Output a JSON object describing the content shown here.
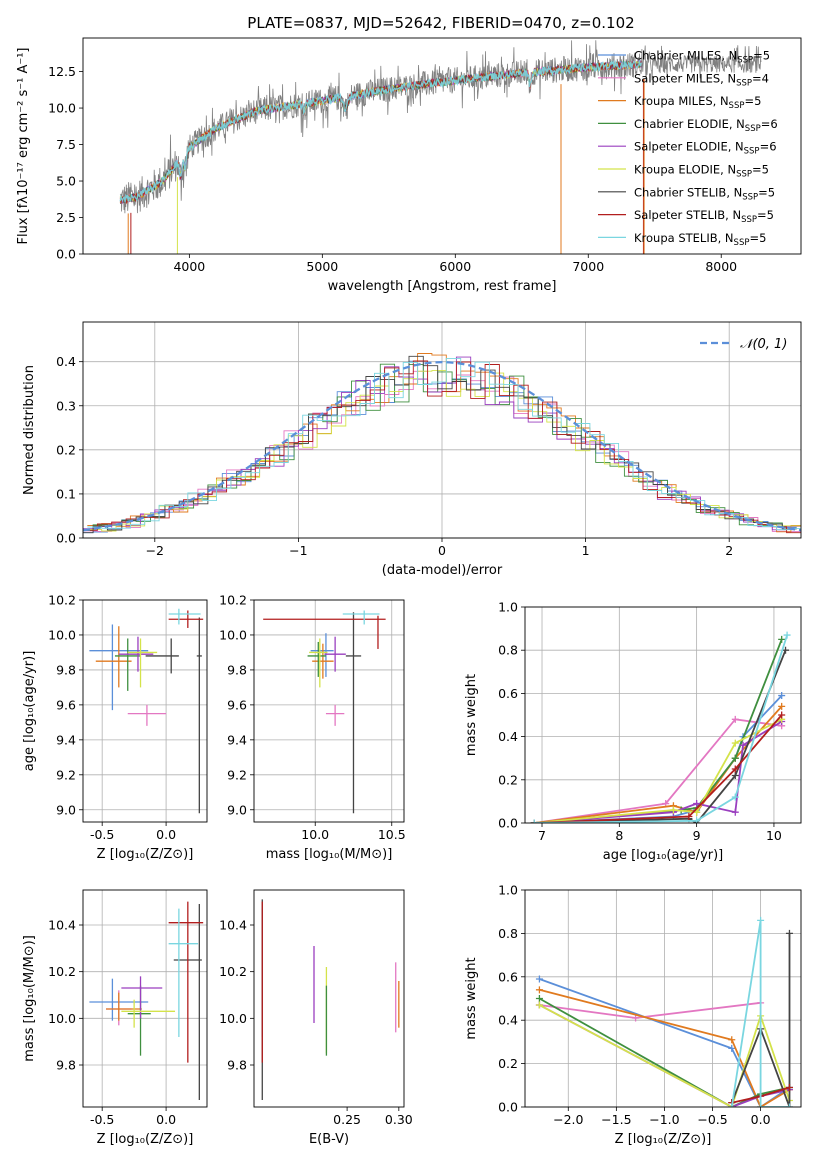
{
  "figure": {
    "title": "PLATE=0837, MJD=52642, FIBERID=0470, z=0.102"
  },
  "chart_data": [
    {
      "id": "spectrum",
      "type": "line",
      "xlabel": "wavelength [Angstrom, rest frame]",
      "ylabel": "Flux [fλ10⁻¹⁷ erg cm⁻² s⁻¹ A⁻¹]",
      "xlim": [
        3200,
        8600
      ],
      "ylim": [
        0,
        14.8
      ],
      "xticks": [
        4000,
        5000,
        6000,
        7000,
        8000
      ],
      "yticks": [
        0.0,
        2.5,
        5.0,
        7.5,
        10.0,
        12.5
      ],
      "grid": false,
      "legend_position": "top-right",
      "data_trend": {
        "x": [
          3500,
          3600,
          3800,
          4000,
          4200,
          4500,
          5000,
          5500,
          6000,
          6500,
          7000,
          7400
        ],
        "y": [
          3.7,
          3.9,
          5.0,
          7.3,
          8.6,
          9.8,
          10.5,
          11.3,
          11.9,
          12.4,
          12.8,
          13.0
        ]
      },
      "data_extent": [
        3480,
        8300
      ],
      "model_extent": [
        3480,
        7400
      ],
      "series": [
        {
          "name": "Chabrier MILES, N_SSP=5",
          "color": "#5b8fd9"
        },
        {
          "name": "Salpeter MILES, N_SSP=4",
          "color": "#e377c2"
        },
        {
          "name": "Kroupa MILES, N_SSP=5",
          "color": "#e07a1f"
        },
        {
          "name": "Chabrier ELODIE, N_SSP=6",
          "color": "#3f8f3f"
        },
        {
          "name": "Salpeter ELODIE, N_SSP=6",
          "color": "#9a3fbf"
        },
        {
          "name": "Kroupa ELODIE, N_SSP=5",
          "color": "#d4e34a"
        },
        {
          "name": "Chabrier STELIB, N_SSP=5",
          "color": "#444444"
        },
        {
          "name": "Salpeter STELIB, N_SSP=5",
          "color": "#b21e1e"
        },
        {
          "name": "Kroupa STELIB, N_SSP=5",
          "color": "#7ad6e0"
        }
      ]
    },
    {
      "id": "residuals",
      "type": "line",
      "xlabel": "(data-model)/error",
      "ylabel": "Normed distribution",
      "xlim": [
        -2.5,
        2.5
      ],
      "ylim": [
        0,
        0.49
      ],
      "xticks": [
        -2,
        -1,
        0,
        1,
        2
      ],
      "yticks": [
        0.0,
        0.1,
        0.2,
        0.3,
        0.4
      ],
      "grid": true,
      "legend_position": "top-right",
      "legend": "𝒩(0, 1)",
      "gaussian": {
        "mu": 0,
        "sigma": 1,
        "color": "#5b8fd9"
      },
      "histogram_bins": 50
    },
    {
      "id": "age-vs-Z",
      "type": "scatter",
      "xlabel": "Z [log₁₀(Z/Z⊙)]",
      "ylabel": "age  [log₁₀(age/yr)]",
      "xlim": [
        -0.65,
        0.32
      ],
      "ylim": [
        8.93,
        10.2
      ],
      "xticks": [
        -0.5,
        0.0
      ],
      "yticks": [
        9.0,
        9.2,
        9.4,
        9.6,
        9.8,
        10.0,
        10.2
      ],
      "grid": true,
      "points": [
        {
          "x": -0.42,
          "y": 9.91,
          "xerr": [
            0.18,
            0.28
          ],
          "yerr": [
            0.34,
            0.15
          ],
          "color": "#5b8fd9"
        },
        {
          "x": -0.15,
          "y": 9.55,
          "xerr": [
            0.15,
            0.15
          ],
          "yerr": [
            0.07,
            0.05
          ],
          "color": "#e377c2"
        },
        {
          "x": -0.37,
          "y": 9.85,
          "xerr": [
            0.18,
            0.1
          ],
          "yerr": [
            0.15,
            0.2
          ],
          "color": "#e07a1f"
        },
        {
          "x": -0.3,
          "y": 9.88,
          "xerr": [
            0.1,
            0.1
          ],
          "yerr": [
            0.2,
            0.1
          ],
          "color": "#3f8f3f"
        },
        {
          "x": -0.22,
          "y": 9.89,
          "xerr": [
            0.15,
            0.12
          ],
          "yerr": [
            0.1,
            0.1
          ],
          "color": "#9a3fbf"
        },
        {
          "x": -0.2,
          "y": 9.9,
          "xerr": [
            0.1,
            0.13
          ],
          "yerr": [
            0.2,
            0.08
          ],
          "color": "#d4e34a"
        },
        {
          "x": 0.04,
          "y": 9.88,
          "xerr": [
            0.2,
            0.06
          ],
          "yerr": [
            0.1,
            0.1
          ],
          "color": "#444444"
        },
        {
          "x": 0.26,
          "y": 9.88,
          "xerr": [
            0.02,
            0.02
          ],
          "yerr": [
            0.9,
            0.22
          ],
          "color": "#444444"
        },
        {
          "x": 0.17,
          "y": 10.09,
          "xerr": [
            0.15,
            0.12
          ],
          "yerr": [
            0.05,
            0.05
          ],
          "color": "#b21e1e"
        },
        {
          "x": 0.1,
          "y": 10.12,
          "xerr": [
            0.08,
            0.17
          ],
          "yerr": [
            0.06,
            0.03
          ],
          "color": "#7ad6e0"
        }
      ]
    },
    {
      "id": "age-vs-mass",
      "type": "scatter",
      "xlabel": "mass [log₁₀(M/M⊙)]",
      "ylabel": "",
      "xlim": [
        9.6,
        10.58
      ],
      "ylim": [
        8.93,
        10.2
      ],
      "xticks": [
        10.0,
        10.5
      ],
      "yticks": [
        9.0,
        9.2,
        9.4,
        9.6,
        9.8,
        10.0,
        10.2
      ],
      "grid": true,
      "points": [
        {
          "x": 10.07,
          "y": 9.91,
          "xerr": [
            0.1,
            0.05
          ],
          "yerr": [
            0.15,
            0.1
          ],
          "color": "#5b8fd9"
        },
        {
          "x": 10.13,
          "y": 9.55,
          "xerr": [
            0.06,
            0.06
          ],
          "yerr": [
            0.07,
            0.05
          ],
          "color": "#e377c2"
        },
        {
          "x": 10.05,
          "y": 9.85,
          "xerr": [
            0.07,
            0.07
          ],
          "yerr": [
            0.1,
            0.1
          ],
          "color": "#e07a1f"
        },
        {
          "x": 10.02,
          "y": 9.88,
          "xerr": [
            0.07,
            0.05
          ],
          "yerr": [
            0.12,
            0.08
          ],
          "color": "#3f8f3f"
        },
        {
          "x": 10.13,
          "y": 9.89,
          "xerr": [
            0.07,
            0.07
          ],
          "yerr": [
            0.1,
            0.1
          ],
          "color": "#9a3fbf"
        },
        {
          "x": 10.03,
          "y": 9.9,
          "xerr": [
            0.07,
            0.05
          ],
          "yerr": [
            0.2,
            0.08
          ],
          "color": "#d4e34a"
        },
        {
          "x": 10.25,
          "y": 9.88,
          "xerr": [
            0.05,
            0.05
          ],
          "yerr": [
            0.9,
            0.25
          ],
          "color": "#444444"
        },
        {
          "x": 10.41,
          "y": 10.09,
          "xerr": [
            0.75,
            0.05
          ],
          "yerr": [
            0.17,
            0.02
          ],
          "color": "#b21e1e"
        },
        {
          "x": 10.32,
          "y": 10.12,
          "xerr": [
            0.14,
            0.1
          ],
          "yerr": [
            0.06,
            0.02
          ],
          "color": "#7ad6e0"
        }
      ]
    },
    {
      "id": "massweight-vs-age",
      "type": "line",
      "xlabel": "age  [log₁₀(age/yr)]",
      "ylabel": "mass weight",
      "xlim": [
        6.78,
        10.35
      ],
      "ylim": [
        0,
        1.0
      ],
      "xticks": [
        7,
        8,
        9,
        10
      ],
      "yticks": [
        0.0,
        0.2,
        0.4,
        0.6,
        0.8,
        1.0
      ],
      "grid": true,
      "series": [
        {
          "color": "#5b8fd9",
          "x": [
            6.9,
            8.7,
            9.0,
            9.5,
            9.6,
            10.1
          ],
          "y": [
            0.0,
            0.03,
            0.06,
            0.3,
            0.4,
            0.59
          ]
        },
        {
          "color": "#e377c2",
          "x": [
            6.9,
            8.6,
            9.5,
            10.1
          ],
          "y": [
            0.0,
            0.09,
            0.48,
            0.45
          ]
        },
        {
          "color": "#e07a1f",
          "x": [
            6.9,
            8.7,
            9.0,
            9.5,
            10.1
          ],
          "y": [
            0.0,
            0.08,
            0.05,
            0.3,
            0.54
          ]
        },
        {
          "color": "#3f8f3f",
          "x": [
            6.9,
            8.8,
            9.0,
            9.5,
            10.1
          ],
          "y": [
            0.0,
            0.06,
            0.07,
            0.3,
            0.85
          ]
        },
        {
          "color": "#9a3fbf",
          "x": [
            6.9,
            8.7,
            9.0,
            9.5,
            9.6,
            10.1
          ],
          "y": [
            0.0,
            0.05,
            0.09,
            0.05,
            0.36,
            0.47
          ]
        },
        {
          "color": "#d4e34a",
          "x": [
            6.9,
            8.7,
            9.0,
            9.5,
            10.1
          ],
          "y": [
            0.0,
            0.06,
            0.05,
            0.37,
            0.48
          ]
        },
        {
          "color": "#444444",
          "x": [
            6.9,
            8.9,
            9.0,
            9.5,
            10.15
          ],
          "y": [
            0.0,
            0.02,
            0.0,
            0.22,
            0.8
          ]
        },
        {
          "color": "#b21e1e",
          "x": [
            6.9,
            8.9,
            9.5,
            10.1
          ],
          "y": [
            0.0,
            0.03,
            0.25,
            0.5
          ]
        },
        {
          "color": "#7ad6e0",
          "x": [
            6.9,
            9.0,
            9.5,
            10.17
          ],
          "y": [
            0.0,
            0.01,
            0.12,
            0.87
          ]
        }
      ]
    },
    {
      "id": "mass-vs-Z",
      "type": "scatter",
      "xlabel": "Z [log₁₀(Z/Z⊙)]",
      "ylabel": "mass [log₁₀(M/M⊙)]",
      "xlim": [
        -0.65,
        0.32
      ],
      "ylim": [
        9.62,
        10.55
      ],
      "xticks": [
        -0.5,
        0.0
      ],
      "yticks": [
        9.8,
        10.0,
        10.2,
        10.4
      ],
      "grid": true,
      "points": [
        {
          "x": -0.42,
          "y": 10.07,
          "xerr": [
            0.18,
            0.28
          ],
          "yerr": [
            0.08,
            0.1
          ],
          "color": "#5b8fd9"
        },
        {
          "x": -0.37,
          "y": 10.04,
          "xerr": [
            0.1,
            0.1
          ],
          "yerr": [
            0.07,
            0.08
          ],
          "color": "#e377c2"
        },
        {
          "x": -0.37,
          "y": 10.04,
          "xerr": [
            0.1,
            0.18
          ],
          "yerr": [
            0.05,
            0.07
          ],
          "color": "#e07a1f"
        },
        {
          "x": -0.2,
          "y": 10.02,
          "xerr": [
            0.1,
            0.08
          ],
          "yerr": [
            0.18,
            0.12
          ],
          "color": "#3f8f3f"
        },
        {
          "x": -0.2,
          "y": 10.13,
          "xerr": [
            0.15,
            0.17
          ],
          "yerr": [
            0.13,
            0.05
          ],
          "color": "#9a3fbf"
        },
        {
          "x": -0.25,
          "y": 10.03,
          "xerr": [
            0.1,
            0.32
          ],
          "yerr": [
            0.07,
            0.05
          ],
          "color": "#d4e34a"
        },
        {
          "x": 0.26,
          "y": 10.25,
          "xerr": [
            0.2,
            0.02
          ],
          "yerr": [
            0.6,
            0.24
          ],
          "color": "#444444"
        },
        {
          "x": 0.17,
          "y": 10.41,
          "xerr": [
            0.15,
            0.12
          ],
          "yerr": [
            0.6,
            0.09
          ],
          "color": "#b21e1e"
        },
        {
          "x": 0.1,
          "y": 10.32,
          "xerr": [
            0.08,
            0.15
          ],
          "yerr": [
            0.4,
            0.15
          ],
          "color": "#7ad6e0"
        }
      ]
    },
    {
      "id": "mass-vs-ebv",
      "type": "scatter",
      "xlabel": "E(B-V)",
      "ylabel": "",
      "xlim": [
        0.16,
        0.305
      ],
      "ylim": [
        9.62,
        10.55
      ],
      "xticks": [
        0.25,
        0.3
      ],
      "yticks": [
        9.8,
        10.0,
        10.2,
        10.4
      ],
      "grid": false,
      "points": [
        {
          "x": 0.168,
          "y": 10.07,
          "yerr": [
            0.15,
            0.4
          ],
          "color": "#5b8fd9"
        },
        {
          "x": 0.168,
          "y": 10.35,
          "yerr": [
            0.25,
            0.12
          ],
          "color": "#7ad6e0"
        },
        {
          "x": 0.168,
          "y": 10.25,
          "yerr": [
            0.6,
            0.26
          ],
          "color": "#444444"
        },
        {
          "x": 0.168,
          "y": 10.41,
          "yerr": [
            0.6,
            0.09
          ],
          "color": "#b21e1e"
        },
        {
          "x": 0.218,
          "y": 10.13,
          "yerr": [
            0.15,
            0.18
          ],
          "color": "#9a3fbf"
        },
        {
          "x": 0.23,
          "y": 10.03,
          "yerr": [
            0.18,
            0.19
          ],
          "color": "#d4e34a"
        },
        {
          "x": 0.23,
          "y": 10.02,
          "yerr": [
            0.18,
            0.12
          ],
          "color": "#3f8f3f"
        },
        {
          "x": 0.297,
          "y": 10.04,
          "yerr": [
            0.1,
            0.2
          ],
          "color": "#e377c2"
        },
        {
          "x": 0.3,
          "y": 10.04,
          "yerr": [
            0.08,
            0.12
          ],
          "color": "#e07a1f"
        }
      ]
    },
    {
      "id": "massweight-vs-Z",
      "type": "line",
      "xlabel": "Z [log₁₀(Z/Z⊙)]",
      "ylabel": "mass weight",
      "xlim": [
        -2.45,
        0.42
      ],
      "ylim": [
        0,
        1.0
      ],
      "xticks": [
        -2.0,
        -1.5,
        -1.0,
        -0.5,
        0.0
      ],
      "yticks": [
        0.0,
        0.2,
        0.4,
        0.6,
        0.8,
        1.0
      ],
      "grid": true,
      "series": [
        {
          "color": "#5b8fd9",
          "x": [
            -2.3,
            -0.3,
            0.0,
            0.3
          ],
          "y": [
            0.59,
            0.27,
            0.0,
            0.09
          ]
        },
        {
          "color": "#e377c2",
          "x": [
            -2.3,
            -1.3,
            0.0
          ],
          "y": [
            0.47,
            0.41,
            0.48
          ]
        },
        {
          "color": "#e07a1f",
          "x": [
            -2.3,
            -0.3,
            0.0,
            0.3
          ],
          "y": [
            0.54,
            0.31,
            0.0,
            0.08
          ]
        },
        {
          "color": "#3f8f3f",
          "x": [
            -2.3,
            -0.3,
            0.0,
            0.3
          ],
          "y": [
            0.5,
            0.0,
            0.06,
            0.09
          ]
        },
        {
          "color": "#9a3fbf",
          "x": [
            -2.3,
            -0.3,
            0.0,
            0.3
          ],
          "y": [
            0.47,
            0.0,
            0.05,
            0.08
          ]
        },
        {
          "color": "#d4e34a",
          "x": [
            -2.3,
            -0.3,
            0.0,
            0.3
          ],
          "y": [
            0.47,
            0.0,
            0.42,
            0.03
          ]
        },
        {
          "color": "#444444",
          "x": [
            -0.3,
            0.0,
            0.3,
            0.3
          ],
          "y": [
            0.02,
            0.36,
            0.0,
            0.8
          ]
        },
        {
          "color": "#b21e1e",
          "x": [
            -0.3,
            0.0,
            0.3
          ],
          "y": [
            0.02,
            0.05,
            0.09
          ]
        },
        {
          "color": "#7ad6e0",
          "x": [
            -0.3,
            0.0,
            0.0,
            0.3
          ],
          "y": [
            0.0,
            0.86,
            0.0,
            0.0
          ]
        }
      ]
    }
  ]
}
